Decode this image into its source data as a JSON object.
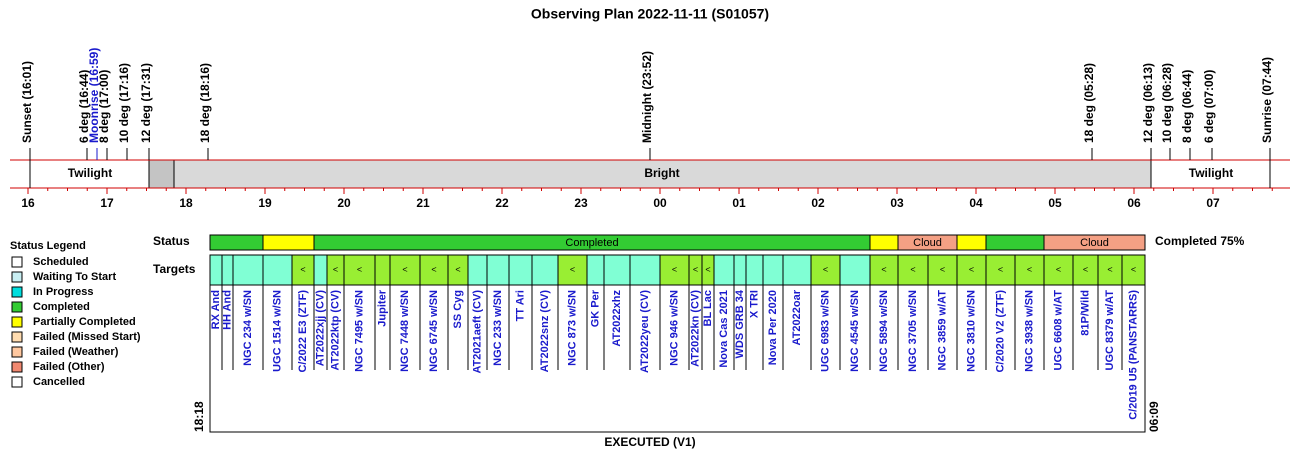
{
  "title": "Observing Plan 2022-11-11 (S01057)",
  "events": [
    {
      "label": "Sunset (16:01)"
    },
    {
      "label": "6 deg (16:44)"
    },
    {
      "label": "Moonrise (16:59)",
      "color": "#1a1acc"
    },
    {
      "label": "8 deg (17:00)"
    },
    {
      "label": "10 deg (17:16)"
    },
    {
      "label": "12 deg (17:31)"
    },
    {
      "label": "18 deg (18:16)"
    },
    {
      "label": "Midnight (23:52)"
    },
    {
      "label": "18 deg (05:28)"
    },
    {
      "label": "12 deg (06:13)"
    },
    {
      "label": "10 deg (06:28)"
    },
    {
      "label": "8 deg (06:44)"
    },
    {
      "label": "6 deg (07:00)"
    },
    {
      "label": "Sunrise (07:44)"
    }
  ],
  "bands": [
    "Twilight",
    "Bright",
    "Twilight"
  ],
  "hours": [
    "16",
    "17",
    "18",
    "19",
    "20",
    "21",
    "22",
    "23",
    "00",
    "01",
    "02",
    "03",
    "04",
    "05",
    "06",
    "07"
  ],
  "legend": {
    "title": "Status Legend",
    "items": [
      {
        "label": "Scheduled",
        "color": "#ffffff"
      },
      {
        "label": "Waiting To Start",
        "color": "#c8eef2"
      },
      {
        "label": "In Progress",
        "color": "#00dede"
      },
      {
        "label": "Completed",
        "color": "#33cc33"
      },
      {
        "label": "Partially Completed",
        "color": "#ffff00"
      },
      {
        "label": "Failed (Missed Start)",
        "color": "#ffdcb0"
      },
      {
        "label": "Failed (Weather)",
        "color": "#ffc8a0"
      },
      {
        "label": "Failed (Other)",
        "color": "#f08870"
      },
      {
        "label": "Cancelled",
        "color": "#ffffff"
      }
    ]
  },
  "status": {
    "label": "Status",
    "summary": "Completed 75%",
    "segments": [
      {
        "color": "#33cc33"
      },
      {
        "color": "#ffff00"
      },
      {
        "color": "#33cc33",
        "label": "Completed"
      },
      {
        "color": "#ffff00"
      },
      {
        "color": "#f4a084",
        "label": "Cloud"
      },
      {
        "color": "#ffff00"
      },
      {
        "color": "#33cc33"
      },
      {
        "color": "#f4a084",
        "label": "Cloud"
      }
    ]
  },
  "targets": {
    "label": "Targets",
    "start": "18:18",
    "end": "06:09",
    "items": [
      {
        "name": "RX And",
        "color": "#80ffd4"
      },
      {
        "name": "HH And",
        "color": "#80ffd4"
      },
      {
        "name": "NGC 234 w/SN",
        "color": "#80ffd4"
      },
      {
        "name": "UGC 1514 w/SN",
        "color": "#80ffd4"
      },
      {
        "name": "C/2022 E3 (ZTF)",
        "color": "#99ee33",
        "marker": "<"
      },
      {
        "name": "AT2022xjj (CV)",
        "color": "#80ffd4"
      },
      {
        "name": "AT2022ktp (CV)",
        "color": "#99ee33",
        "marker": "<"
      },
      {
        "name": "NGC 7495 w/SN",
        "color": "#99ee33",
        "marker": "<"
      },
      {
        "name": "Jupiter",
        "color": "#99ee33"
      },
      {
        "name": "NGC 7448 w/SN",
        "color": "#99ee33",
        "marker": "<"
      },
      {
        "name": "NGC 6745 w/SN",
        "color": "#99ee33",
        "marker": "<"
      },
      {
        "name": "SS Cyg",
        "color": "#99ee33",
        "marker": "<"
      },
      {
        "name": "AT2021aeft (CV)",
        "color": "#80ffd4"
      },
      {
        "name": "NGC 233 w/SN",
        "color": "#80ffd4"
      },
      {
        "name": "TT Ari",
        "color": "#80ffd4"
      },
      {
        "name": "AT2022snz (CV)",
        "color": "#80ffd4"
      },
      {
        "name": "NGC 873 w/SN",
        "color": "#99ee33",
        "marker": "<"
      },
      {
        "name": "GK Per",
        "color": "#80ffd4"
      },
      {
        "name": "AT2022xhz",
        "color": "#80ffd4"
      },
      {
        "name": "AT2022yeu (CV)",
        "color": "#80ffd4"
      },
      {
        "name": "NGC 946 w/SN",
        "color": "#99ee33",
        "marker": "<"
      },
      {
        "name": "AT2022kn (CV)",
        "color": "#99ee33",
        "marker": "<"
      },
      {
        "name": "BL Lac",
        "color": "#99ee33",
        "marker": "<"
      },
      {
        "name": "Nova Cas 2021",
        "color": "#80ffd4"
      },
      {
        "name": "WDS GRB 34",
        "color": "#80ffd4"
      },
      {
        "name": "X TRI",
        "color": "#80ffd4"
      },
      {
        "name": "Nova Per 2020",
        "color": "#80ffd4"
      },
      {
        "name": "AT2022oar",
        "color": "#80ffd4"
      },
      {
        "name": "UGC 6983 w/SN",
        "color": "#99ee33",
        "marker": "<"
      },
      {
        "name": "NGC 4545 w/SN",
        "color": "#80ffd4"
      },
      {
        "name": "NGC 5894 w/SN",
        "color": "#99ee33",
        "marker": "<"
      },
      {
        "name": "NGC 3705 w/SN",
        "color": "#99ee33",
        "marker": "<"
      },
      {
        "name": "NGC 3859 w/AT",
        "color": "#99ee33",
        "marker": "<"
      },
      {
        "name": "NGC 3810 w/SN",
        "color": "#99ee33",
        "marker": "<"
      },
      {
        "name": "C/2020 V2 (ZTF)",
        "color": "#99ee33",
        "marker": "<"
      },
      {
        "name": "NGC 3938 w/SN",
        "color": "#99ee33",
        "marker": "<"
      },
      {
        "name": "UGC 6608 w/AT",
        "color": "#99ee33",
        "marker": "<"
      },
      {
        "name": "81P/Wild",
        "color": "#99ee33",
        "marker": "<"
      },
      {
        "name": "UGC 8379 w/AT",
        "color": "#99ee33",
        "marker": "<"
      },
      {
        "name": "C/2019 U5 (PANSTARRS)",
        "color": "#99ee33",
        "marker": "<"
      }
    ]
  },
  "footer": "EXECUTED (V1)"
}
